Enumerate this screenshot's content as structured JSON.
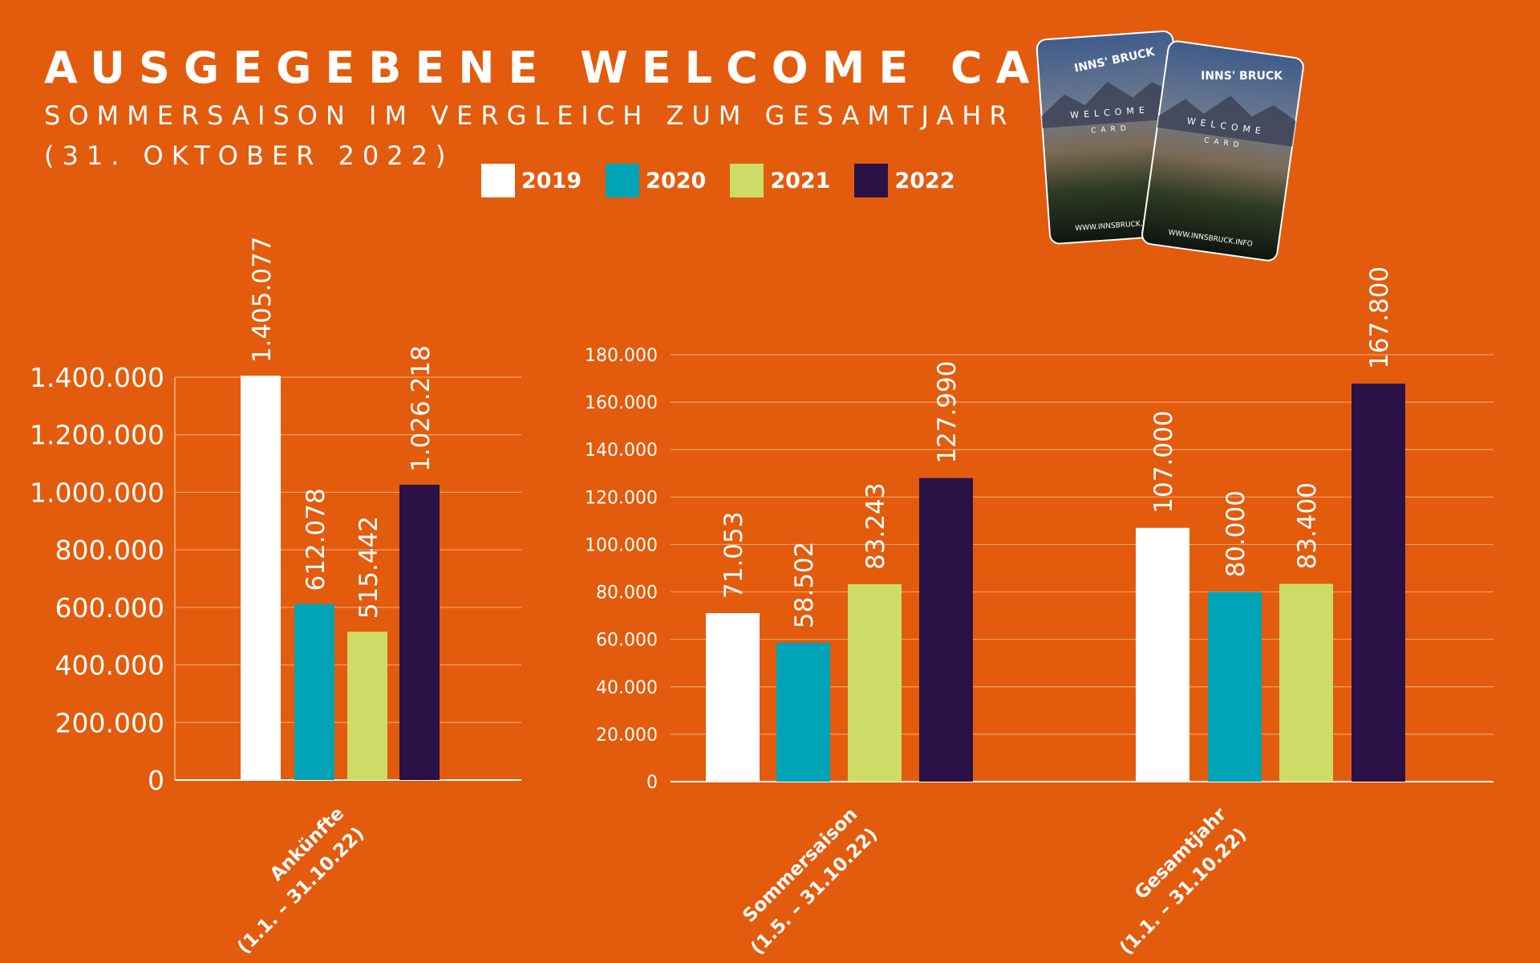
{
  "title": "AUSGEGEBENE WELCOME CARDS",
  "subtitle": "SOMMERSAISON IM VERGLEICH ZUM GESAMTJAHR",
  "subtitle2": "(31. OKTOBER 2022)",
  "legend": [
    {
      "label": "2019",
      "color": "#FFFFFF"
    },
    {
      "label": "2020",
      "color": "#01A3B7"
    },
    {
      "label": "2021",
      "color": "#CDDC66"
    },
    {
      "label": "2022",
      "color": "#2A1247"
    }
  ],
  "cards_image": {
    "logo": "INNS' BRUCK",
    "title": "WELCOME",
    "subtitle": "CARD",
    "url": "WWW.INNSBRUCK.INFO"
  },
  "chart_data": [
    {
      "type": "bar",
      "category": "Ankünfte (1.1. – 31.10.22)",
      "category_lines": [
        "Ankünfte",
        "(1.1. – 31.10.22)"
      ],
      "ylim": [
        0,
        1400000
      ],
      "yticks": [
        "0",
        "200.000",
        "400.000",
        "600.000",
        "800.000",
        "1.000.000",
        "1.200.000",
        "1.400.000"
      ],
      "series": [
        {
          "name": "2019",
          "value": 1405077,
          "label": "1.405.077"
        },
        {
          "name": "2020",
          "value": 612078,
          "label": "612.078"
        },
        {
          "name": "2021",
          "value": 515442,
          "label": "515.442"
        },
        {
          "name": "2022",
          "value": 1026218,
          "label": "1.026.218"
        }
      ]
    },
    {
      "type": "bar",
      "ylim": [
        0,
        180000
      ],
      "yticks": [
        "0",
        "20.000",
        "40.000",
        "60.000",
        "80.000",
        "100.000",
        "120.000",
        "140.000",
        "160.000",
        "180.000"
      ],
      "categories": [
        {
          "label": "Sommersaison (1.5. – 31.10.22)",
          "lines": [
            "Sommersaison",
            "(1.5. – 31.10.22)"
          ],
          "values": [
            71053,
            58502,
            83243,
            127990
          ],
          "labels": [
            "71.053",
            "58.502",
            "83.243",
            "127.990"
          ]
        },
        {
          "label": "Gesamtjahr (1.1. – 31.10.22)",
          "lines": [
            "Gesamtjahr",
            "(1.1. – 31.10.22)"
          ],
          "values": [
            107000,
            80000,
            83400,
            167800
          ],
          "labels": [
            "107.000",
            "80.000",
            "83.400",
            "167.800"
          ]
        }
      ]
    }
  ]
}
